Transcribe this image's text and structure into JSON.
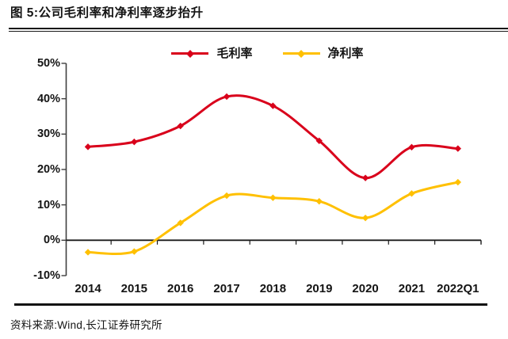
{
  "figure": {
    "title": "图 5:公司毛利率和净利率逐步抬升",
    "source": "资料来源:Wind,长江证券研究所"
  },
  "colors": {
    "gross_margin": "#D9001B",
    "net_margin": "#FFC000",
    "axis": "#3f3f3f",
    "zero_line": "#1a1a1a",
    "text": "#141414"
  },
  "chart_data": {
    "type": "line",
    "smooth": true,
    "grid": false,
    "legend_position": "top-center",
    "categories": [
      "2014",
      "2015",
      "2016",
      "2017",
      "2018",
      "2019",
      "2020",
      "2021",
      "2022Q1"
    ],
    "series": [
      {
        "name": "毛利率",
        "color_key": "gross_margin",
        "values": [
          26.4,
          27.8,
          32.3,
          40.6,
          38.0,
          28.1,
          17.6,
          26.3,
          25.9
        ]
      },
      {
        "name": "净利率",
        "color_key": "net_margin",
        "values": [
          -3.4,
          -3.2,
          4.9,
          12.6,
          12.0,
          11.0,
          6.3,
          13.2,
          16.4
        ]
      }
    ],
    "ylabel": "",
    "xlabel": "",
    "ylim": [
      -10,
      50
    ],
    "ytick_step": 10,
    "ytick_labels": [
      "50%",
      "40%",
      "30%",
      "20%",
      "10%",
      "0%",
      "-10%"
    ]
  }
}
